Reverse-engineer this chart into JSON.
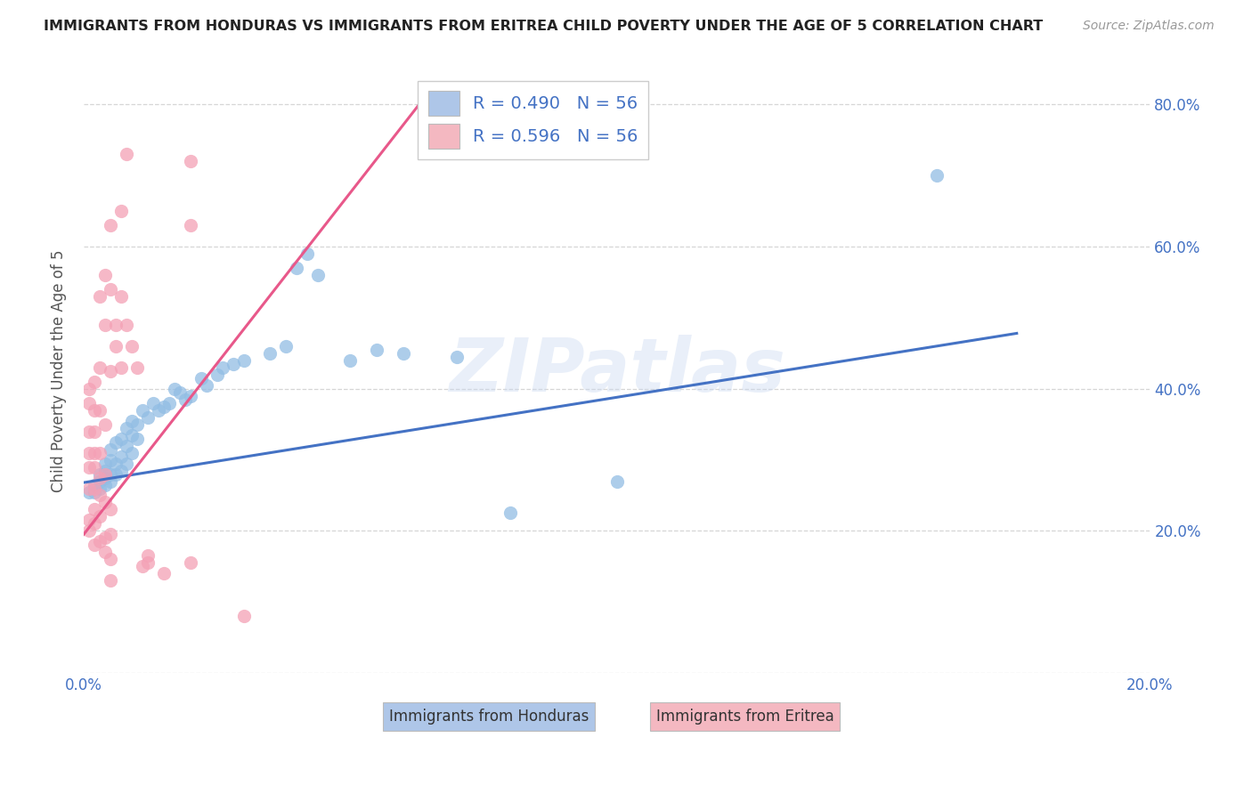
{
  "title": "IMMIGRANTS FROM HONDURAS VS IMMIGRANTS FROM ERITREA CHILD POVERTY UNDER THE AGE OF 5 CORRELATION CHART",
  "source": "Source: ZipAtlas.com",
  "ylabel": "Child Poverty Under the Age of 5",
  "xlim": [
    0.0,
    0.2
  ],
  "ylim": [
    0.0,
    0.85
  ],
  "x_ticks": [
    0.0,
    0.04,
    0.08,
    0.12,
    0.16,
    0.2
  ],
  "y_ticks": [
    0.0,
    0.2,
    0.4,
    0.6,
    0.8
  ],
  "right_y_labels": [
    "",
    "20.0%",
    "40.0%",
    "60.0%",
    "80.0%"
  ],
  "legend_entries": [
    {
      "label": "R = 0.490   N = 56",
      "color": "#aec6e8"
    },
    {
      "label": "R = 0.596   N = 56",
      "color": "#f4b8c1"
    }
  ],
  "legend_R_color": "#4472c4",
  "watermark": "ZIPatlas",
  "blue_color": "#92bde4",
  "pink_color": "#f4a0b5",
  "line_blue": "#4472c4",
  "line_pink": "#e8588a",
  "honduras_points": [
    [
      0.001,
      0.255
    ],
    [
      0.002,
      0.255
    ],
    [
      0.002,
      0.265
    ],
    [
      0.003,
      0.26
    ],
    [
      0.003,
      0.27
    ],
    [
      0.003,
      0.28
    ],
    [
      0.004,
      0.265
    ],
    [
      0.004,
      0.275
    ],
    [
      0.004,
      0.285
    ],
    [
      0.004,
      0.295
    ],
    [
      0.005,
      0.27
    ],
    [
      0.005,
      0.28
    ],
    [
      0.005,
      0.3
    ],
    [
      0.005,
      0.315
    ],
    [
      0.006,
      0.28
    ],
    [
      0.006,
      0.295
    ],
    [
      0.006,
      0.325
    ],
    [
      0.007,
      0.285
    ],
    [
      0.007,
      0.305
    ],
    [
      0.007,
      0.33
    ],
    [
      0.008,
      0.295
    ],
    [
      0.008,
      0.32
    ],
    [
      0.008,
      0.345
    ],
    [
      0.009,
      0.31
    ],
    [
      0.009,
      0.335
    ],
    [
      0.009,
      0.355
    ],
    [
      0.01,
      0.33
    ],
    [
      0.01,
      0.35
    ],
    [
      0.011,
      0.37
    ],
    [
      0.012,
      0.36
    ],
    [
      0.013,
      0.38
    ],
    [
      0.014,
      0.37
    ],
    [
      0.015,
      0.375
    ],
    [
      0.016,
      0.38
    ],
    [
      0.017,
      0.4
    ],
    [
      0.018,
      0.395
    ],
    [
      0.019,
      0.385
    ],
    [
      0.02,
      0.39
    ],
    [
      0.022,
      0.415
    ],
    [
      0.023,
      0.405
    ],
    [
      0.025,
      0.42
    ],
    [
      0.026,
      0.43
    ],
    [
      0.028,
      0.435
    ],
    [
      0.03,
      0.44
    ],
    [
      0.035,
      0.45
    ],
    [
      0.038,
      0.46
    ],
    [
      0.04,
      0.57
    ],
    [
      0.042,
      0.59
    ],
    [
      0.044,
      0.56
    ],
    [
      0.05,
      0.44
    ],
    [
      0.055,
      0.455
    ],
    [
      0.06,
      0.45
    ],
    [
      0.07,
      0.445
    ],
    [
      0.08,
      0.225
    ],
    [
      0.1,
      0.27
    ],
    [
      0.16,
      0.7
    ]
  ],
  "eritrea_points": [
    [
      0.001,
      0.2
    ],
    [
      0.001,
      0.215
    ],
    [
      0.001,
      0.26
    ],
    [
      0.001,
      0.29
    ],
    [
      0.001,
      0.31
    ],
    [
      0.001,
      0.34
    ],
    [
      0.001,
      0.38
    ],
    [
      0.001,
      0.4
    ],
    [
      0.002,
      0.18
    ],
    [
      0.002,
      0.21
    ],
    [
      0.002,
      0.23
    ],
    [
      0.002,
      0.26
    ],
    [
      0.002,
      0.29
    ],
    [
      0.002,
      0.31
    ],
    [
      0.002,
      0.34
    ],
    [
      0.002,
      0.37
    ],
    [
      0.002,
      0.41
    ],
    [
      0.003,
      0.185
    ],
    [
      0.003,
      0.22
    ],
    [
      0.003,
      0.25
    ],
    [
      0.003,
      0.275
    ],
    [
      0.003,
      0.31
    ],
    [
      0.003,
      0.37
    ],
    [
      0.003,
      0.43
    ],
    [
      0.003,
      0.53
    ],
    [
      0.004,
      0.17
    ],
    [
      0.004,
      0.19
    ],
    [
      0.004,
      0.24
    ],
    [
      0.004,
      0.28
    ],
    [
      0.004,
      0.35
    ],
    [
      0.004,
      0.49
    ],
    [
      0.004,
      0.56
    ],
    [
      0.005,
      0.13
    ],
    [
      0.005,
      0.16
    ],
    [
      0.005,
      0.195
    ],
    [
      0.005,
      0.23
    ],
    [
      0.005,
      0.425
    ],
    [
      0.005,
      0.54
    ],
    [
      0.005,
      0.63
    ],
    [
      0.006,
      0.46
    ],
    [
      0.006,
      0.49
    ],
    [
      0.007,
      0.43
    ],
    [
      0.007,
      0.53
    ],
    [
      0.007,
      0.65
    ],
    [
      0.008,
      0.49
    ],
    [
      0.008,
      0.73
    ],
    [
      0.009,
      0.46
    ],
    [
      0.01,
      0.43
    ],
    [
      0.011,
      0.15
    ],
    [
      0.012,
      0.155
    ],
    [
      0.012,
      0.165
    ],
    [
      0.015,
      0.14
    ],
    [
      0.02,
      0.155
    ],
    [
      0.02,
      0.63
    ],
    [
      0.02,
      0.72
    ],
    [
      0.03,
      0.08
    ]
  ],
  "blue_line_x": [
    0.0,
    0.175
  ],
  "blue_line_y": [
    0.268,
    0.478
  ],
  "pink_line_x": [
    0.0,
    0.065
  ],
  "pink_line_y": [
    0.195,
    0.82
  ]
}
